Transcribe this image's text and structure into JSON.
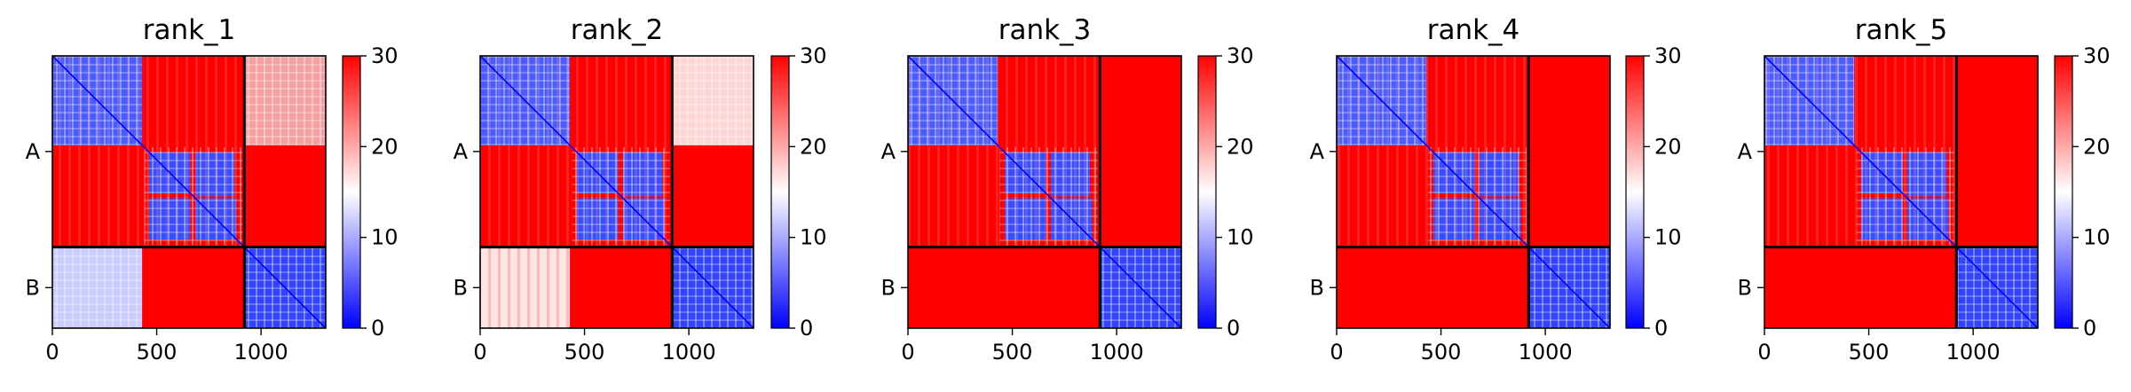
{
  "chart_data": [
    {
      "type": "heatmap",
      "title": "rank_1",
      "xticks": [
        "0",
        "500",
        "1000"
      ],
      "yticks": [
        "A",
        "B"
      ],
      "colorbar_ticks": [
        "0",
        "10",
        "20",
        "30"
      ],
      "clim": [
        0,
        30
      ],
      "colormap": "bwr",
      "chain_boundary": 920,
      "matrix_size": 1310,
      "blocks": {
        "A_A": "low in domain blocks, high elsewhere",
        "A_B": "mixed 15-30",
        "B_A": "mixed 10-30",
        "B_B": "low (0-10)"
      }
    },
    {
      "type": "heatmap",
      "title": "rank_2",
      "xticks": [
        "0",
        "500",
        "1000"
      ],
      "yticks": [
        "A",
        "B"
      ],
      "colorbar_ticks": [
        "0",
        "10",
        "20",
        "30"
      ],
      "clim": [
        0,
        30
      ],
      "colormap": "bwr",
      "chain_boundary": 920,
      "matrix_size": 1310,
      "blocks": {
        "A_A": "low in domain blocks, high elsewhere",
        "A_B": "mixed 15-30",
        "B_A": "mixed 15-30",
        "B_B": "low (0-10)"
      }
    },
    {
      "type": "heatmap",
      "title": "rank_3",
      "xticks": [
        "0",
        "500",
        "1000"
      ],
      "yticks": [
        "A",
        "B"
      ],
      "colorbar_ticks": [
        "0",
        "10",
        "20",
        "30"
      ],
      "clim": [
        0,
        30
      ],
      "colormap": "bwr",
      "chain_boundary": 920,
      "matrix_size": 1310,
      "blocks": {
        "A_A": "low in domain blocks, high elsewhere",
        "A_B": "high (~30)",
        "B_A": "high (~30)",
        "B_B": "low (0-10)"
      }
    },
    {
      "type": "heatmap",
      "title": "rank_4",
      "xticks": [
        "0",
        "500",
        "1000"
      ],
      "yticks": [
        "A",
        "B"
      ],
      "colorbar_ticks": [
        "0",
        "10",
        "20",
        "30"
      ],
      "clim": [
        0,
        30
      ],
      "colormap": "bwr",
      "chain_boundary": 920,
      "matrix_size": 1310,
      "blocks": {
        "A_A": "low in domain blocks, high elsewhere",
        "A_B": "high (~30)",
        "B_A": "high (~30)",
        "B_B": "low (0-10)"
      }
    },
    {
      "type": "heatmap",
      "title": "rank_5",
      "xticks": [
        "0",
        "500",
        "1000"
      ],
      "yticks": [
        "A",
        "B"
      ],
      "colorbar_ticks": [
        "0",
        "10",
        "20",
        "30"
      ],
      "clim": [
        0,
        30
      ],
      "colormap": "bwr",
      "chain_boundary": 920,
      "matrix_size": 1310,
      "blocks": {
        "A_A": "low in domain blocks, high elsewhere",
        "A_B": "high (~30)",
        "B_A": "high (~30)",
        "B_B": "low (0-10)"
      }
    }
  ],
  "colors": {
    "low": "#0000ff",
    "mid": "#ffffff",
    "high": "#ff0000"
  }
}
